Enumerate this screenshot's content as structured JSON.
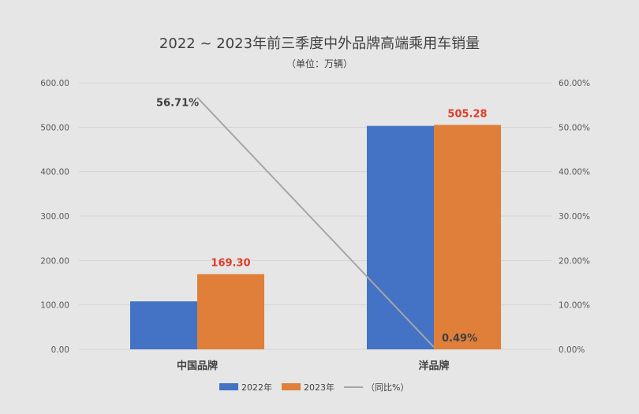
{
  "chart_data": {
    "type": "bar",
    "title": "2022 ~ 2023年前三季度中外品牌高端乘用车销量",
    "subtitle": "（单位：万辆）",
    "categories": [
      "中国品牌",
      "洋品牌"
    ],
    "series": [
      {
        "name": "2022年",
        "type": "bar",
        "axis": "left",
        "color": "#4472c4",
        "values": [
          108.0,
          503.0
        ]
      },
      {
        "name": "2023年",
        "type": "bar",
        "axis": "left",
        "color": "#e07f3a",
        "values": [
          169.3,
          505.28
        ],
        "labels": [
          "169.30",
          "505.28"
        ]
      },
      {
        "name": "（同比%）",
        "type": "line",
        "axis": "right",
        "color": "#a6a6a6",
        "values": [
          56.71,
          0.49
        ],
        "labels": [
          "56.71%",
          "0.49%"
        ]
      }
    ],
    "left_axis": {
      "ticks": [
        "0.00",
        "100.00",
        "200.00",
        "300.00",
        "400.00",
        "500.00",
        "600.00"
      ],
      "ylim": [
        0,
        600
      ]
    },
    "right_axis": {
      "ticks": [
        "0.00%",
        "10.00%",
        "20.00%",
        "30.00%",
        "40.00%",
        "50.00%",
        "60.00%"
      ],
      "ylim": [
        0,
        60
      ]
    },
    "grid": true,
    "legend_position": "bottom"
  }
}
